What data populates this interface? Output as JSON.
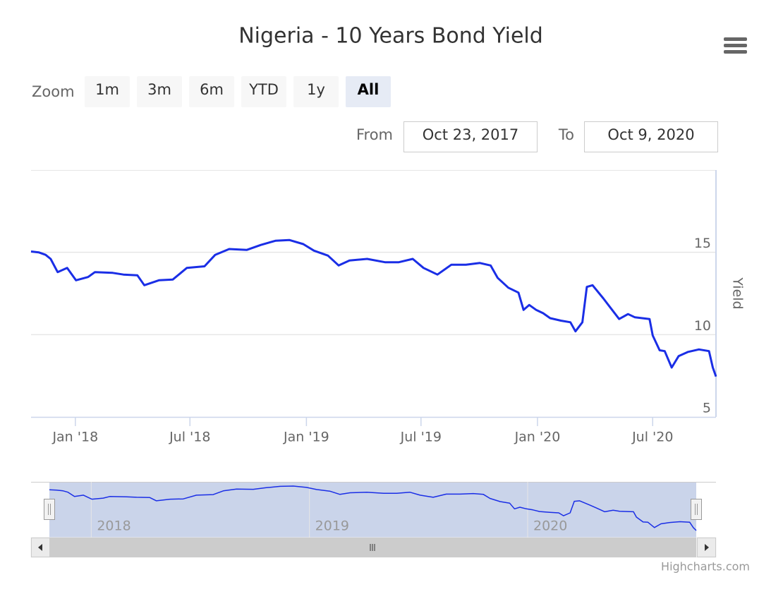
{
  "chart_data": {
    "type": "line",
    "title": "Nigeria - 10 Years Bond Yield",
    "y_label": "Yield",
    "color": "#1a2ee6",
    "x": [
      "2017-10-23",
      "2017-11-04",
      "2017-11-15",
      "2017-11-23",
      "2017-12-04",
      "2017-12-19",
      "2018-01-02",
      "2018-01-21",
      "2018-02-01",
      "2018-03-01",
      "2018-03-18",
      "2018-04-09",
      "2018-04-20",
      "2018-05-13",
      "2018-06-04",
      "2018-06-26",
      "2018-07-24",
      "2018-08-10",
      "2018-09-01",
      "2018-09-29",
      "2018-10-21",
      "2018-11-13",
      "2018-12-05",
      "2018-12-27",
      "2019-01-13",
      "2019-02-04",
      "2019-02-21",
      "2019-03-10",
      "2019-04-07",
      "2019-05-05",
      "2019-05-27",
      "2019-06-18",
      "2019-07-05",
      "2019-07-27",
      "2019-08-18",
      "2019-09-10",
      "2019-10-02",
      "2019-10-19",
      "2019-10-30",
      "2019-11-16",
      "2019-12-02",
      "2019-12-10",
      "2019-12-19",
      "2019-12-30",
      "2020-01-10",
      "2020-01-21",
      "2020-02-07",
      "2020-02-22",
      "2020-03-01",
      "2020-03-12",
      "2020-03-19",
      "2020-03-28",
      "2020-04-14",
      "2020-04-25",
      "2020-05-09",
      "2020-05-23",
      "2020-06-03",
      "2020-06-26",
      "2020-07-01",
      "2020-07-12",
      "2020-07-20",
      "2020-07-31",
      "2020-08-11",
      "2020-08-26",
      "2020-09-12",
      "2020-09-28",
      "2020-10-04",
      "2020-10-09"
    ],
    "values": [
      15.05,
      15.0,
      14.85,
      14.6,
      13.8,
      14.05,
      13.3,
      13.5,
      13.8,
      13.75,
      13.65,
      13.6,
      13.0,
      13.3,
      13.35,
      14.05,
      14.15,
      14.85,
      15.2,
      15.15,
      15.45,
      15.7,
      15.75,
      15.5,
      15.1,
      14.8,
      14.2,
      14.5,
      14.6,
      14.4,
      14.4,
      14.6,
      14.05,
      13.65,
      14.25,
      14.25,
      14.35,
      14.2,
      13.45,
      12.85,
      12.55,
      11.5,
      11.8,
      11.5,
      11.3,
      11.0,
      10.85,
      10.75,
      10.2,
      10.75,
      12.9,
      13.0,
      12.2,
      11.65,
      10.95,
      11.25,
      11.05,
      10.95,
      9.95,
      9.05,
      9.0,
      8.0,
      8.7,
      8.95,
      9.1,
      9.0,
      8.0,
      7.45
    ],
    "xlim": [
      "2017-10-23",
      "2020-10-09"
    ],
    "xticks": [
      {
        "value": "2018-01-01",
        "label": "Jan '18"
      },
      {
        "value": "2018-07-01",
        "label": "Jul '18"
      },
      {
        "value": "2019-01-01",
        "label": "Jan '19"
      },
      {
        "value": "2019-07-01",
        "label": "Jul '19"
      },
      {
        "value": "2020-01-01",
        "label": "Jan '20"
      },
      {
        "value": "2020-07-01",
        "label": "Jul '20"
      }
    ],
    "ylim": [
      5,
      20
    ],
    "yticks": [
      5,
      10,
      15
    ],
    "grid": true,
    "range_selector": {
      "zoom_label": "Zoom",
      "buttons": [
        "1m",
        "3m",
        "6m",
        "YTD",
        "1y",
        "All"
      ],
      "selected": 5,
      "from_label": "From",
      "from": "Oct 23, 2017",
      "to_label": "To",
      "to": "Oct 9, 2020"
    },
    "navigator": {
      "xticks": [
        {
          "value": "2018-01-01",
          "label": "2018"
        },
        {
          "value": "2019-01-01",
          "label": "2019"
        },
        {
          "value": "2020-01-01",
          "label": "2020"
        }
      ]
    },
    "credits": "Highcharts.com"
  }
}
